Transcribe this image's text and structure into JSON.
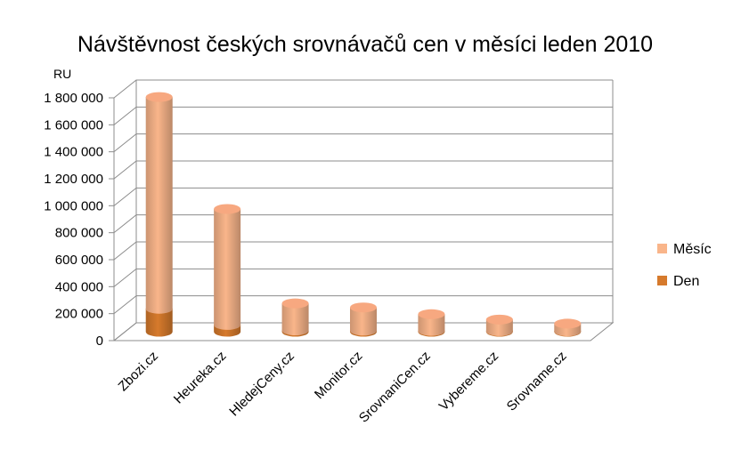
{
  "chart_data": {
    "type": "bar",
    "style": "3d-cylinder-stacked",
    "title": "Návštěvnost českých srovnávačů cen v měsíci leden 2010",
    "ylabel": "RU",
    "ylim": [
      0,
      1800000
    ],
    "yticks": [
      0,
      200000,
      400000,
      600000,
      800000,
      1000000,
      1200000,
      1400000,
      1600000,
      1800000
    ],
    "ytick_labels": [
      "0",
      "200 000",
      "400 000",
      "600 000",
      "800 000",
      "1 000 000",
      "1 200 000",
      "1 400 000",
      "1 600 000",
      "1 800 000"
    ],
    "categories": [
      "Zbozi.cz",
      "Heureka.cz",
      "HledejCeny.cz",
      "Monitor.cz",
      "SrovnaniCen.cz",
      "Vybereme.cz",
      "Srovname.cz"
    ],
    "series": [
      {
        "name": "Den",
        "color": "#d67a2c",
        "values": [
          170000,
          50000,
          10000,
          8000,
          6000,
          4000,
          3000
        ]
      },
      {
        "name": "Měsíc",
        "color": "#f9b58a",
        "values": [
          1740000,
          910000,
          210000,
          180000,
          130000,
          90000,
          60000
        ]
      }
    ],
    "legend_position": "right",
    "grid": true
  }
}
